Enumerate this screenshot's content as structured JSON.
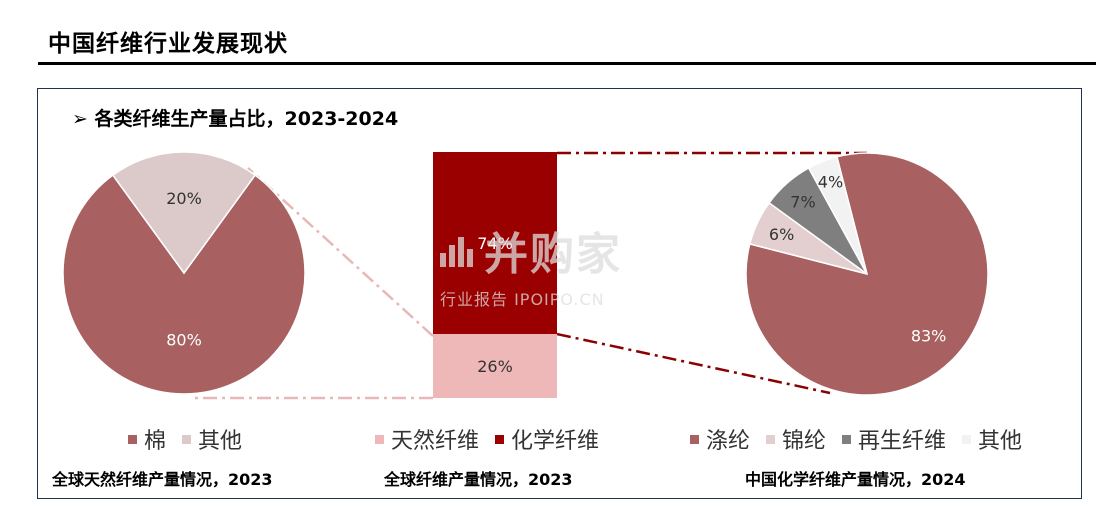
{
  "page": {
    "title": "中国纤维行业发展现状",
    "section_heading": "➢ 各类纤维生产量占比，2023-2024"
  },
  "colors": {
    "cotton": "#a86060",
    "natural": "#efb8b8",
    "chemical": "#9b0000",
    "polyester": "#a86060",
    "nylon": "#e3cfcf",
    "recycled": "#7f7f7f",
    "other_light": "#f2f2f2",
    "other_natural": "#dcc9c9",
    "connector_light": "#e8b8b8",
    "connector_dark": "#8b0000"
  },
  "watermark": {
    "logo_text": "并购家",
    "sub_text": "行业报告 IPOIPO.CN"
  },
  "chart_data": [
    {
      "type": "pie",
      "caption": "全球天然纤维产量情况，2023",
      "slices": [
        {
          "name": "棉",
          "value": 80,
          "label": "80%"
        },
        {
          "name": "其他",
          "value": 20,
          "label": "20%"
        }
      ],
      "legend": [
        "棉",
        "其他"
      ],
      "legend_position": "bottom"
    },
    {
      "type": "bar",
      "stacked": true,
      "caption": "全球纤维产量情况，2023",
      "segments": [
        {
          "name": "天然纤维",
          "value": 26,
          "label": "26%"
        },
        {
          "name": "化学纤维",
          "value": 74,
          "label": "74%"
        }
      ],
      "legend": [
        "天然纤维",
        "化学纤维"
      ],
      "legend_position": "bottom"
    },
    {
      "type": "pie",
      "caption": "中国化学纤维产量情况，2024",
      "slices": [
        {
          "name": "涤纶",
          "value": 83,
          "label": "83%"
        },
        {
          "name": "锦纶",
          "value": 6,
          "label": "6%"
        },
        {
          "name": "再生纤维",
          "value": 7,
          "label": "7%"
        },
        {
          "name": "其他",
          "value": 4,
          "label": "4%"
        }
      ],
      "legend": [
        "涤纶",
        "锦纶",
        "再生纤维",
        "其他"
      ],
      "legend_position": "bottom"
    }
  ]
}
